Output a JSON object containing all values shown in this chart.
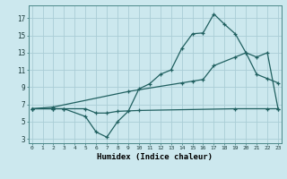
{
  "xlabel": "Humidex (Indice chaleur)",
  "background_color": "#cce8ee",
  "grid_color": "#aacdd6",
  "line_color": "#206060",
  "x_ticks": [
    0,
    1,
    2,
    3,
    4,
    5,
    6,
    7,
    8,
    9,
    10,
    11,
    12,
    13,
    14,
    15,
    16,
    17,
    18,
    19,
    20,
    21,
    22,
    23
  ],
  "y_ticks": [
    3,
    5,
    7,
    9,
    11,
    13,
    15,
    17
  ],
  "xlim": [
    -0.3,
    23.3
  ],
  "ylim": [
    2.5,
    18.5
  ],
  "line1_x": [
    0,
    2,
    3,
    5,
    6,
    7,
    8,
    9,
    10,
    11,
    12,
    13,
    14,
    15,
    16,
    17,
    18,
    19,
    20,
    21,
    22,
    23
  ],
  "line1_y": [
    6.5,
    6.5,
    6.5,
    5.6,
    3.8,
    3.2,
    5.0,
    6.2,
    8.8,
    9.4,
    10.5,
    11.0,
    13.5,
    15.2,
    15.3,
    17.5,
    16.3,
    15.2,
    13.0,
    10.5,
    10.0,
    9.5
  ],
  "line2_x": [
    0,
    2,
    9,
    14,
    15,
    16,
    17,
    19,
    20,
    21,
    22,
    23
  ],
  "line2_y": [
    6.5,
    6.7,
    8.5,
    9.5,
    9.7,
    9.9,
    11.5,
    12.5,
    13.0,
    12.5,
    13.0,
    6.5
  ],
  "line3_x": [
    0,
    2,
    3,
    5,
    6,
    7,
    8,
    10,
    19,
    22,
    23
  ],
  "line3_y": [
    6.5,
    6.5,
    6.5,
    6.5,
    6.0,
    6.0,
    6.2,
    6.3,
    6.5,
    6.5,
    6.5
  ]
}
